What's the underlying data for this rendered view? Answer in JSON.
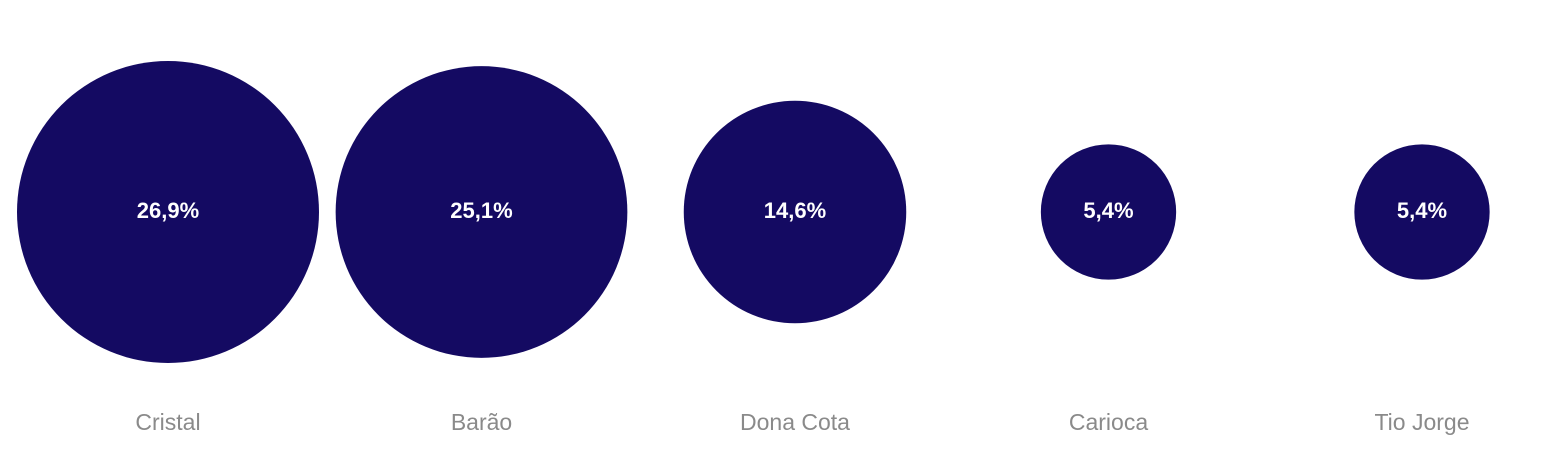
{
  "chart_data": {
    "type": "bubble",
    "categories": [
      "Cristal",
      "Barão",
      "Dona Cota",
      "Carioca",
      "Tio Jorge"
    ],
    "values": [
      26.9,
      25.1,
      14.6,
      5.4,
      5.4
    ],
    "value_labels": [
      "26,9%",
      "25,1%",
      "14,6%",
      "5,4%",
      "5,4%"
    ],
    "color": "#140a62"
  }
}
